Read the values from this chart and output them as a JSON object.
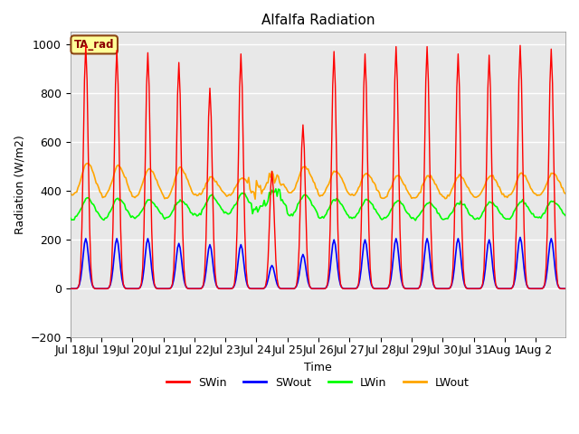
{
  "title": "Alfalfa Radiation",
  "xlabel": "Time",
  "ylabel": "Radiation (W/m2)",
  "ylim": [
    -200,
    1050
  ],
  "x_tick_labels": [
    "Jul 18",
    "Jul 19",
    "Jul 20",
    "Jul 21",
    "Jul 22",
    "Jul 23",
    "Jul 24",
    "Jul 25",
    "Jul 26",
    "Jul 27",
    "Jul 28",
    "Jul 29",
    "Jul 30",
    "Jul 31",
    "Aug 1",
    "Aug 2"
  ],
  "colors": {
    "SWin": "#ff0000",
    "SWout": "#0000ff",
    "LWin": "#00ff00",
    "LWout": "#ffa500"
  },
  "annotation_text": "TA_rad",
  "annotation_color": "#8b0000",
  "annotation_bg": "#ffff99",
  "annotation_border": "#8b4513",
  "background_color": "#e8e8e8",
  "peak_vals_SWin": [
    995,
    975,
    965,
    925,
    820,
    960,
    480,
    670,
    970,
    960,
    990,
    990,
    960,
    955,
    995,
    980
  ],
  "peak_vals_SWout": [
    205,
    205,
    205,
    185,
    180,
    180,
    95,
    140,
    200,
    200,
    205,
    205,
    205,
    200,
    210,
    205
  ],
  "LWout_day_peaks": [
    500,
    490,
    480,
    480,
    440,
    440,
    450,
    490,
    470,
    460,
    450,
    450,
    450,
    450,
    460,
    460
  ],
  "LWout_night_base": [
    380,
    375,
    375,
    370,
    380,
    380,
    410,
    390,
    380,
    380,
    370,
    370,
    370,
    375,
    375,
    380
  ],
  "LWin_day_peaks": [
    360,
    360,
    355,
    355,
    370,
    380,
    390,
    375,
    360,
    355,
    350,
    345,
    345,
    345,
    350,
    350
  ],
  "LWin_night_base": [
    285,
    285,
    290,
    290,
    300,
    310,
    330,
    300,
    290,
    290,
    285,
    285,
    285,
    285,
    285,
    290
  ]
}
